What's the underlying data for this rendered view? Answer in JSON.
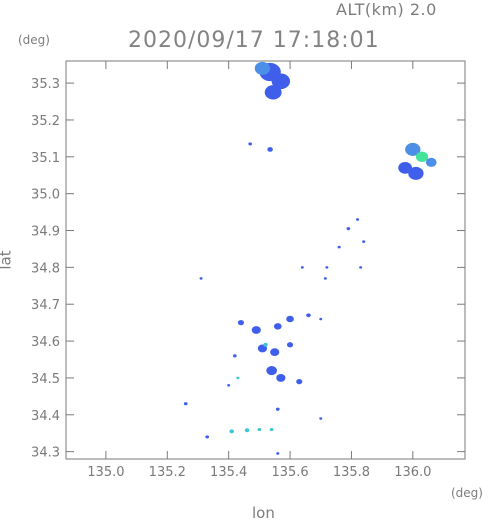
{
  "header": {
    "altitude_label": "ALT(km) 2.0",
    "timestamp": "2020/09/17 17:18:01"
  },
  "axes": {
    "x_title": "lon",
    "y_title": "lat",
    "x_unit": "(deg)",
    "y_unit": "(deg)",
    "x_ticks": [
      "135.0",
      "135.2",
      "135.4",
      "135.6",
      "135.8",
      "136.0"
    ],
    "y_ticks": [
      "35.3",
      "35.2",
      "35.1",
      "35.0",
      "34.9",
      "34.8",
      "34.7",
      "34.6",
      "34.5",
      "34.4",
      "34.3"
    ]
  },
  "map": {
    "lon_range": [
      134.87,
      136.17
    ],
    "lat_range": [
      34.28,
      35.36
    ],
    "colors": {
      "frame": "#7a7a7a",
      "blue": "#3f5fea",
      "cyan": "#39c6d8",
      "green": "#44e39a",
      "light_blue": "#4d8fe6"
    },
    "echo_cells": [
      {
        "lon": 135.535,
        "lat": 35.33,
        "size": 0.07,
        "color": "blue"
      },
      {
        "lon": 135.57,
        "lat": 35.305,
        "size": 0.06,
        "color": "blue"
      },
      {
        "lon": 135.545,
        "lat": 35.275,
        "size": 0.055,
        "color": "blue"
      },
      {
        "lon": 135.51,
        "lat": 35.34,
        "size": 0.05,
        "color": "light_blue"
      },
      {
        "lon": 135.47,
        "lat": 35.135,
        "size": 0.012,
        "color": "blue"
      },
      {
        "lon": 135.535,
        "lat": 35.12,
        "size": 0.018,
        "color": "blue"
      },
      {
        "lon": 136.0,
        "lat": 35.12,
        "size": 0.05,
        "color": "light_blue"
      },
      {
        "lon": 136.03,
        "lat": 35.1,
        "size": 0.04,
        "color": "green"
      },
      {
        "lon": 136.06,
        "lat": 35.085,
        "size": 0.035,
        "color": "light_blue"
      },
      {
        "lon": 135.975,
        "lat": 35.07,
        "size": 0.045,
        "color": "blue"
      },
      {
        "lon": 136.01,
        "lat": 35.055,
        "size": 0.05,
        "color": "blue"
      },
      {
        "lon": 135.82,
        "lat": 34.93,
        "size": 0.01,
        "color": "blue"
      },
      {
        "lon": 135.79,
        "lat": 34.905,
        "size": 0.012,
        "color": "blue"
      },
      {
        "lon": 135.84,
        "lat": 34.87,
        "size": 0.01,
        "color": "blue"
      },
      {
        "lon": 135.76,
        "lat": 34.855,
        "size": 0.01,
        "color": "blue"
      },
      {
        "lon": 135.72,
        "lat": 34.8,
        "size": 0.008,
        "color": "blue"
      },
      {
        "lon": 135.83,
        "lat": 34.8,
        "size": 0.008,
        "color": "blue"
      },
      {
        "lon": 135.715,
        "lat": 34.77,
        "size": 0.008,
        "color": "blue"
      },
      {
        "lon": 135.64,
        "lat": 34.8,
        "size": 0.006,
        "color": "blue"
      },
      {
        "lon": 135.31,
        "lat": 34.77,
        "size": 0.01,
        "color": "blue"
      },
      {
        "lon": 135.44,
        "lat": 34.65,
        "size": 0.02,
        "color": "blue"
      },
      {
        "lon": 135.49,
        "lat": 34.63,
        "size": 0.03,
        "color": "blue"
      },
      {
        "lon": 135.56,
        "lat": 34.64,
        "size": 0.025,
        "color": "blue"
      },
      {
        "lon": 135.6,
        "lat": 34.66,
        "size": 0.025,
        "color": "blue"
      },
      {
        "lon": 135.51,
        "lat": 34.58,
        "size": 0.03,
        "color": "blue"
      },
      {
        "lon": 135.55,
        "lat": 34.57,
        "size": 0.03,
        "color": "blue"
      },
      {
        "lon": 135.6,
        "lat": 34.59,
        "size": 0.02,
        "color": "blue"
      },
      {
        "lon": 135.54,
        "lat": 34.52,
        "size": 0.035,
        "color": "blue"
      },
      {
        "lon": 135.57,
        "lat": 34.5,
        "size": 0.03,
        "color": "blue"
      },
      {
        "lon": 135.63,
        "lat": 34.49,
        "size": 0.02,
        "color": "blue"
      },
      {
        "lon": 135.52,
        "lat": 34.59,
        "size": 0.015,
        "color": "cyan"
      },
      {
        "lon": 135.42,
        "lat": 34.56,
        "size": 0.012,
        "color": "blue"
      },
      {
        "lon": 135.43,
        "lat": 34.5,
        "size": 0.01,
        "color": "cyan"
      },
      {
        "lon": 135.4,
        "lat": 34.48,
        "size": 0.008,
        "color": "blue"
      },
      {
        "lon": 135.66,
        "lat": 34.67,
        "size": 0.015,
        "color": "blue"
      },
      {
        "lon": 135.7,
        "lat": 34.66,
        "size": 0.006,
        "color": "blue"
      },
      {
        "lon": 135.26,
        "lat": 34.43,
        "size": 0.012,
        "color": "blue"
      },
      {
        "lon": 135.56,
        "lat": 34.415,
        "size": 0.012,
        "color": "blue"
      },
      {
        "lon": 135.7,
        "lat": 34.39,
        "size": 0.006,
        "color": "blue"
      },
      {
        "lon": 135.33,
        "lat": 34.34,
        "size": 0.012,
        "color": "blue"
      },
      {
        "lon": 135.41,
        "lat": 34.355,
        "size": 0.015,
        "color": "cyan"
      },
      {
        "lon": 135.46,
        "lat": 34.358,
        "size": 0.015,
        "color": "cyan"
      },
      {
        "lon": 135.5,
        "lat": 34.36,
        "size": 0.012,
        "color": "cyan"
      },
      {
        "lon": 135.54,
        "lat": 34.36,
        "size": 0.012,
        "color": "cyan"
      },
      {
        "lon": 135.56,
        "lat": 34.295,
        "size": 0.01,
        "color": "blue"
      }
    ]
  }
}
